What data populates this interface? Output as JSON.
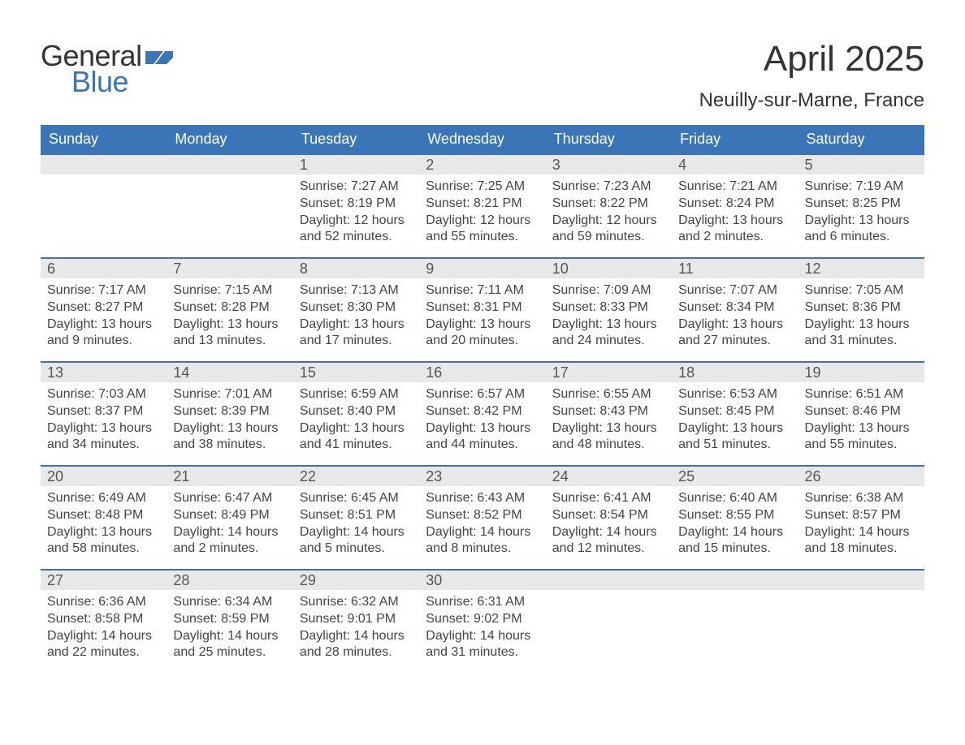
{
  "logo": {
    "text_top": "General",
    "text_bottom": "Blue"
  },
  "header": {
    "title": "April 2025",
    "subtitle": "Neuilly-sur-Marne, France"
  },
  "colors": {
    "header_bg": "#3a76b7",
    "header_text": "#ffffff",
    "day_strip_bg": "#e8e8e8",
    "body_text": "#444444",
    "title_text": "#333333",
    "logo_blue": "#3a76b7",
    "week_border": "#3a76b7"
  },
  "weekdays": [
    "Sunday",
    "Monday",
    "Tuesday",
    "Wednesday",
    "Thursday",
    "Friday",
    "Saturday"
  ],
  "weeks": [
    [
      {
        "day": "",
        "sunrise": "",
        "sunset": "",
        "daylight": ""
      },
      {
        "day": "",
        "sunrise": "",
        "sunset": "",
        "daylight": ""
      },
      {
        "day": "1",
        "sunrise": "Sunrise: 7:27 AM",
        "sunset": "Sunset: 8:19 PM",
        "daylight": "Daylight: 12 hours and 52 minutes."
      },
      {
        "day": "2",
        "sunrise": "Sunrise: 7:25 AM",
        "sunset": "Sunset: 8:21 PM",
        "daylight": "Daylight: 12 hours and 55 minutes."
      },
      {
        "day": "3",
        "sunrise": "Sunrise: 7:23 AM",
        "sunset": "Sunset: 8:22 PM",
        "daylight": "Daylight: 12 hours and 59 minutes."
      },
      {
        "day": "4",
        "sunrise": "Sunrise: 7:21 AM",
        "sunset": "Sunset: 8:24 PM",
        "daylight": "Daylight: 13 hours and 2 minutes."
      },
      {
        "day": "5",
        "sunrise": "Sunrise: 7:19 AM",
        "sunset": "Sunset: 8:25 PM",
        "daylight": "Daylight: 13 hours and 6 minutes."
      }
    ],
    [
      {
        "day": "6",
        "sunrise": "Sunrise: 7:17 AM",
        "sunset": "Sunset: 8:27 PM",
        "daylight": "Daylight: 13 hours and 9 minutes."
      },
      {
        "day": "7",
        "sunrise": "Sunrise: 7:15 AM",
        "sunset": "Sunset: 8:28 PM",
        "daylight": "Daylight: 13 hours and 13 minutes."
      },
      {
        "day": "8",
        "sunrise": "Sunrise: 7:13 AM",
        "sunset": "Sunset: 8:30 PM",
        "daylight": "Daylight: 13 hours and 17 minutes."
      },
      {
        "day": "9",
        "sunrise": "Sunrise: 7:11 AM",
        "sunset": "Sunset: 8:31 PM",
        "daylight": "Daylight: 13 hours and 20 minutes."
      },
      {
        "day": "10",
        "sunrise": "Sunrise: 7:09 AM",
        "sunset": "Sunset: 8:33 PM",
        "daylight": "Daylight: 13 hours and 24 minutes."
      },
      {
        "day": "11",
        "sunrise": "Sunrise: 7:07 AM",
        "sunset": "Sunset: 8:34 PM",
        "daylight": "Daylight: 13 hours and 27 minutes."
      },
      {
        "day": "12",
        "sunrise": "Sunrise: 7:05 AM",
        "sunset": "Sunset: 8:36 PM",
        "daylight": "Daylight: 13 hours and 31 minutes."
      }
    ],
    [
      {
        "day": "13",
        "sunrise": "Sunrise: 7:03 AM",
        "sunset": "Sunset: 8:37 PM",
        "daylight": "Daylight: 13 hours and 34 minutes."
      },
      {
        "day": "14",
        "sunrise": "Sunrise: 7:01 AM",
        "sunset": "Sunset: 8:39 PM",
        "daylight": "Daylight: 13 hours and 38 minutes."
      },
      {
        "day": "15",
        "sunrise": "Sunrise: 6:59 AM",
        "sunset": "Sunset: 8:40 PM",
        "daylight": "Daylight: 13 hours and 41 minutes."
      },
      {
        "day": "16",
        "sunrise": "Sunrise: 6:57 AM",
        "sunset": "Sunset: 8:42 PM",
        "daylight": "Daylight: 13 hours and 44 minutes."
      },
      {
        "day": "17",
        "sunrise": "Sunrise: 6:55 AM",
        "sunset": "Sunset: 8:43 PM",
        "daylight": "Daylight: 13 hours and 48 minutes."
      },
      {
        "day": "18",
        "sunrise": "Sunrise: 6:53 AM",
        "sunset": "Sunset: 8:45 PM",
        "daylight": "Daylight: 13 hours and 51 minutes."
      },
      {
        "day": "19",
        "sunrise": "Sunrise: 6:51 AM",
        "sunset": "Sunset: 8:46 PM",
        "daylight": "Daylight: 13 hours and 55 minutes."
      }
    ],
    [
      {
        "day": "20",
        "sunrise": "Sunrise: 6:49 AM",
        "sunset": "Sunset: 8:48 PM",
        "daylight": "Daylight: 13 hours and 58 minutes."
      },
      {
        "day": "21",
        "sunrise": "Sunrise: 6:47 AM",
        "sunset": "Sunset: 8:49 PM",
        "daylight": "Daylight: 14 hours and 2 minutes."
      },
      {
        "day": "22",
        "sunrise": "Sunrise: 6:45 AM",
        "sunset": "Sunset: 8:51 PM",
        "daylight": "Daylight: 14 hours and 5 minutes."
      },
      {
        "day": "23",
        "sunrise": "Sunrise: 6:43 AM",
        "sunset": "Sunset: 8:52 PM",
        "daylight": "Daylight: 14 hours and 8 minutes."
      },
      {
        "day": "24",
        "sunrise": "Sunrise: 6:41 AM",
        "sunset": "Sunset: 8:54 PM",
        "daylight": "Daylight: 14 hours and 12 minutes."
      },
      {
        "day": "25",
        "sunrise": "Sunrise: 6:40 AM",
        "sunset": "Sunset: 8:55 PM",
        "daylight": "Daylight: 14 hours and 15 minutes."
      },
      {
        "day": "26",
        "sunrise": "Sunrise: 6:38 AM",
        "sunset": "Sunset: 8:57 PM",
        "daylight": "Daylight: 14 hours and 18 minutes."
      }
    ],
    [
      {
        "day": "27",
        "sunrise": "Sunrise: 6:36 AM",
        "sunset": "Sunset: 8:58 PM",
        "daylight": "Daylight: 14 hours and 22 minutes."
      },
      {
        "day": "28",
        "sunrise": "Sunrise: 6:34 AM",
        "sunset": "Sunset: 8:59 PM",
        "daylight": "Daylight: 14 hours and 25 minutes."
      },
      {
        "day": "29",
        "sunrise": "Sunrise: 6:32 AM",
        "sunset": "Sunset: 9:01 PM",
        "daylight": "Daylight: 14 hours and 28 minutes."
      },
      {
        "day": "30",
        "sunrise": "Sunrise: 6:31 AM",
        "sunset": "Sunset: 9:02 PM",
        "daylight": "Daylight: 14 hours and 31 minutes."
      },
      {
        "day": "",
        "sunrise": "",
        "sunset": "",
        "daylight": ""
      },
      {
        "day": "",
        "sunrise": "",
        "sunset": "",
        "daylight": ""
      },
      {
        "day": "",
        "sunrise": "",
        "sunset": "",
        "daylight": ""
      }
    ]
  ]
}
